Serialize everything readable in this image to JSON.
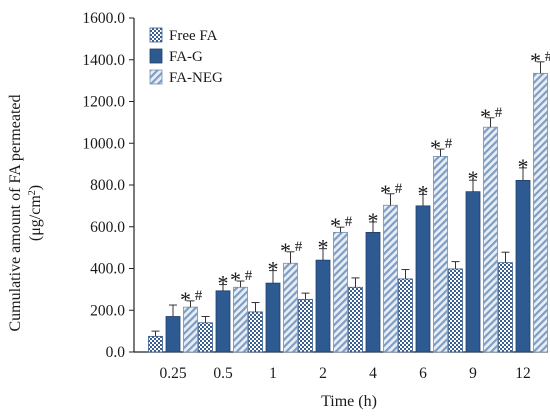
{
  "chart_data": {
    "type": "bar",
    "categories": [
      "0.25",
      "0.5",
      "1",
      "2",
      "4",
      "6",
      "9",
      "12"
    ],
    "series": [
      {
        "name": "Free FA",
        "values": [
          75,
          140,
          192,
          252,
          310,
          350,
          398,
          428
        ],
        "errors": [
          25,
          30,
          45,
          30,
          45,
          45,
          35,
          50
        ],
        "marks": [
          "",
          "",
          "",
          "",
          "",
          "",
          "",
          ""
        ]
      },
      {
        "name": "FA-G",
        "values": [
          170,
          293,
          330,
          440,
          573,
          700,
          768,
          822
        ],
        "errors": [
          55,
          30,
          60,
          55,
          50,
          55,
          55,
          60
        ],
        "marks": [
          "",
          "*",
          "*",
          "*",
          "*",
          "*",
          "*",
          "*"
        ]
      },
      {
        "name": "FA-NEG",
        "values": [
          215,
          310,
          425,
          573,
          703,
          937,
          1077,
          1335
        ],
        "errors": [
          30,
          30,
          55,
          25,
          55,
          35,
          45,
          55
        ],
        "marks": [
          "*#",
          "*#",
          "*#",
          "*#",
          "*#",
          "*#",
          "*#",
          "*#"
        ]
      }
    ],
    "ylim": [
      0,
      1600
    ],
    "yticks": [
      "0.0",
      "200.0",
      "400.0",
      "600.0",
      "800.0",
      "1000.0",
      "1200.0",
      "1400.0",
      "1600.0"
    ],
    "xlabel": "Time (h)",
    "ylabel_line1": "Cumulative  amount of FA permeated",
    "ylabel_line2_prefix": "(μg/cm",
    "ylabel_line2_sup": "2",
    "ylabel_line2_suffix": ")",
    "legend_position": "top-left",
    "grid": false
  }
}
